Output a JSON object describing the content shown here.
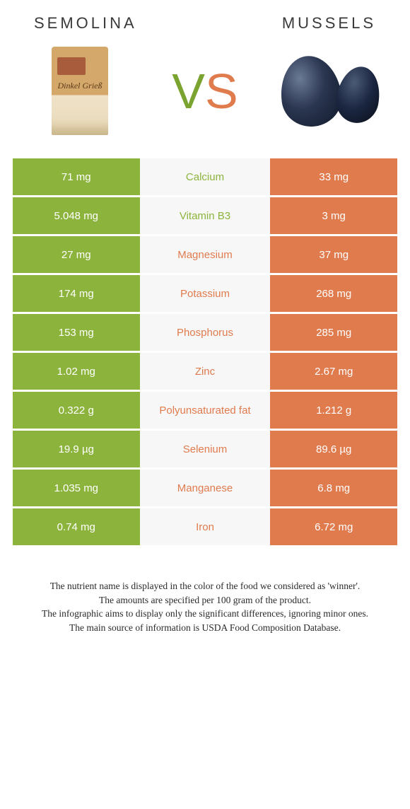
{
  "header": {
    "left_title": "SEMOLINA",
    "right_title": "MUSSELS",
    "left_img_label": "Dinkel Grieß",
    "vs_v_color": "#7aa32f",
    "vs_s_color": "#e07b4e"
  },
  "colors": {
    "left_bg": "#8cb43c",
    "right_bg": "#e07b4e",
    "mid_bg": "#f7f7f7",
    "mid_text_left": "#8cb43c",
    "mid_text_right": "#e07b4e",
    "row_spacing": 3
  },
  "rows": [
    {
      "left": "71 mg",
      "mid": "Calcium",
      "right": "33 mg",
      "winner": "left"
    },
    {
      "left": "5.048 mg",
      "mid": "Vitamin B3",
      "right": "3 mg",
      "winner": "left"
    },
    {
      "left": "27 mg",
      "mid": "Magnesium",
      "right": "37 mg",
      "winner": "right"
    },
    {
      "left": "174 mg",
      "mid": "Potassium",
      "right": "268 mg",
      "winner": "right"
    },
    {
      "left": "153 mg",
      "mid": "Phosphorus",
      "right": "285 mg",
      "winner": "right"
    },
    {
      "left": "1.02 mg",
      "mid": "Zinc",
      "right": "2.67 mg",
      "winner": "right"
    },
    {
      "left": "0.322 g",
      "mid": "Polyunsaturated fat",
      "right": "1.212 g",
      "winner": "right"
    },
    {
      "left": "19.9 µg",
      "mid": "Selenium",
      "right": "89.6 µg",
      "winner": "right"
    },
    {
      "left": "1.035 mg",
      "mid": "Manganese",
      "right": "6.8 mg",
      "winner": "right"
    },
    {
      "left": "0.74 mg",
      "mid": "Iron",
      "right": "6.72 mg",
      "winner": "right"
    }
  ],
  "footer": {
    "line1": "The nutrient name is displayed in the color of the food we considered as 'winner'.",
    "line2": "The amounts are specified per 100 gram of the product.",
    "line3": "The infographic aims to display only the significant differences, ignoring minor ones.",
    "line4": "The main source of information is USDA Food Composition Database."
  }
}
